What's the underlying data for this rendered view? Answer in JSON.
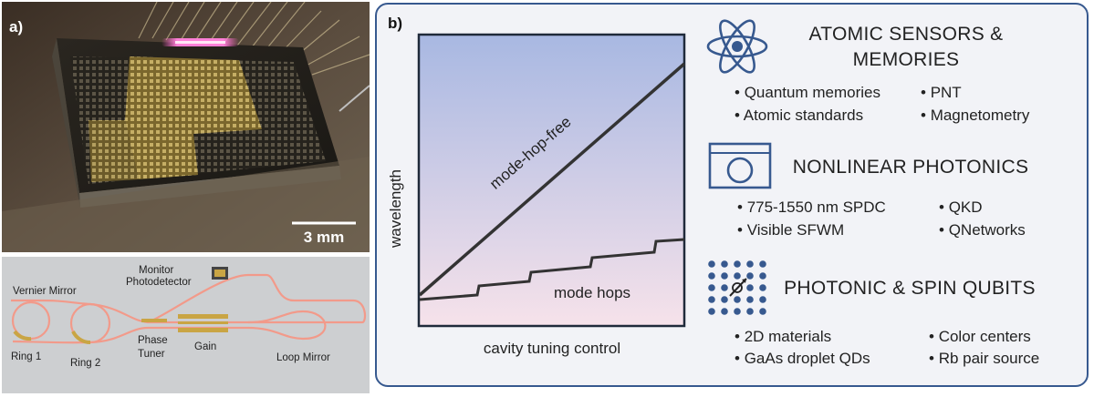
{
  "panel_a": {
    "label": "a)",
    "scale_bar": "3 mm",
    "schematic_labels": {
      "vernier_mirror": "Vernier Mirror",
      "monitor": "Monitor",
      "photodetector": "Photodetector",
      "ring1": "Ring 1",
      "ring2": "Ring 2",
      "phase": "Phase",
      "tuner": "Tuner",
      "gain": "Gain",
      "loop_mirror": "Loop Mirror"
    }
  },
  "panel_b": {
    "label": "b)",
    "plot": {
      "ylabel": "wavelength",
      "xlabel": "cavity tuning control",
      "line1_label": "mode-hop-free",
      "line2_label": "mode hops"
    },
    "sections": [
      {
        "icon": "atom-icon",
        "title_line1": "ATOMIC SENSORS &",
        "title_line2": "MEMORIES",
        "items": [
          "Quantum memories",
          "PNT",
          "Atomic standards",
          "Magnetometry"
        ]
      },
      {
        "icon": "chip-icon",
        "title_line1": "NONLINEAR PHOTONICS",
        "items": [
          "775-1550 nm SPDC",
          "QKD",
          "Visible SFWM",
          "QNetworks"
        ]
      },
      {
        "icon": "qubit-array-icon",
        "title_line1": "PHOTONIC & SPIN QUBITS",
        "items": [
          "2D materials",
          "Color centers",
          "GaAs droplet QDs",
          "Rb pair source"
        ]
      }
    ]
  },
  "colors": {
    "accent": "#37598f",
    "waveguide": "#f29a8a",
    "gold": "#c9a544"
  }
}
